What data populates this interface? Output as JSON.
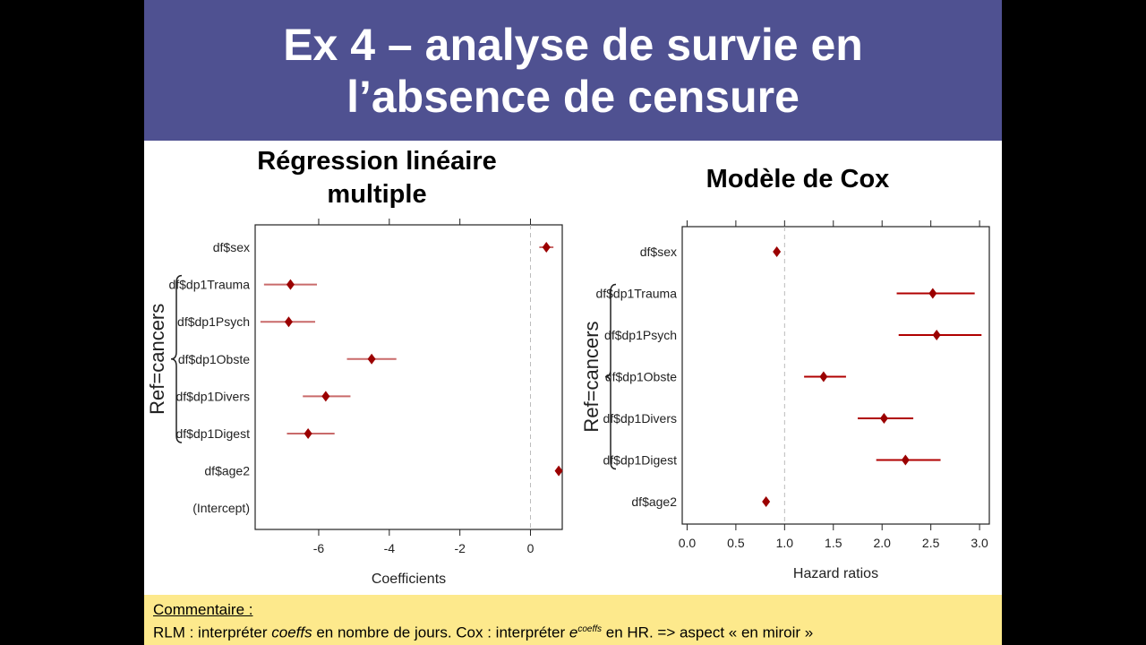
{
  "slide_title": {
    "line1": "Ex 4 – analyse de survie en",
    "line2": "l’absence de censure"
  },
  "comment": {
    "heading": "Commentaire :",
    "part1": "RLM : interpréter ",
    "coeffs1": "coeffs",
    "part2": " en nombre de jours. Cox : interpréter ",
    "e": "e",
    "coeffs2": "coeffs",
    "part3": " en HR. => aspect « en miroir »"
  },
  "colors": {
    "title_bg": "#4f5191",
    "point": "#9b0000",
    "ci_left": "#c96a6a",
    "ci_right": "#b00000",
    "comment_bg": "#fde98c"
  },
  "chart_data": [
    {
      "type": "scatter",
      "title": "Régression linéaire multiple",
      "xlabel": "Coefficients",
      "ylabel": "",
      "xlim": [
        -7.8,
        0.9
      ],
      "x_ticks": [
        -6,
        -4,
        -2,
        0
      ],
      "reference_line": 0,
      "bracket_label": "Ref=cancers",
      "grid": false,
      "categories": [
        "df$sex",
        "df$dp1Trauma",
        "df$dp1Psych",
        "df$dp1Obste",
        "df$dp1Divers",
        "df$dp1Digest",
        "df$age2",
        "(Intercept)"
      ],
      "series": [
        {
          "values": [
            0.45,
            -6.8,
            -6.85,
            -4.5,
            -5.8,
            -6.3,
            0.8,
            null
          ],
          "ci_low": [
            0.25,
            -7.55,
            -7.65,
            -5.2,
            -6.45,
            -6.9,
            0.8,
            null
          ],
          "ci_high": [
            0.65,
            -6.05,
            -6.1,
            -3.8,
            -5.1,
            -5.55,
            0.8,
            null
          ]
        }
      ]
    },
    {
      "type": "scatter",
      "title": "Modèle de Cox",
      "xlabel": "Hazard ratios",
      "ylabel": "",
      "xlim": [
        -0.05,
        3.1
      ],
      "x_ticks": [
        0.0,
        0.5,
        1.0,
        1.5,
        2.0,
        2.5,
        3.0
      ],
      "x_tick_labels": [
        "0.0",
        "0.5",
        "1.0",
        "1.5",
        "2.0",
        "2.5",
        "3.0"
      ],
      "reference_line": 1,
      "bracket_label": "Ref=cancers",
      "grid": false,
      "categories": [
        "df$sex",
        "df$dp1Trauma",
        "df$dp1Psych",
        "df$dp1Obste",
        "df$dp1Divers",
        "df$dp1Digest",
        "df$age2"
      ],
      "series": [
        {
          "values": [
            0.92,
            2.52,
            2.56,
            1.4,
            2.02,
            2.24,
            0.81
          ],
          "ci_low": [
            0.9,
            2.15,
            2.17,
            1.2,
            1.75,
            1.94,
            0.79
          ],
          "ci_high": [
            0.94,
            2.95,
            3.02,
            1.63,
            2.32,
            2.6,
            0.83
          ]
        }
      ]
    }
  ]
}
